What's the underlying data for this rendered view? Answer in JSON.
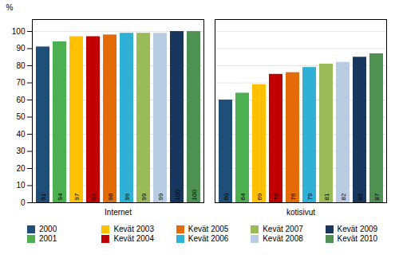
{
  "chart_data": {
    "type": "bar",
    "categories": [
      "Internet",
      "kotisivut"
    ],
    "series": [
      {
        "name": "2000",
        "color": "#1F4E79",
        "values": [
          91,
          60
        ]
      },
      {
        "name": "2001",
        "color": "#4CAF50",
        "values": [
          94,
          64
        ]
      },
      {
        "name": "Kevät 2003",
        "color": "#FFC000",
        "values": [
          97,
          69
        ]
      },
      {
        "name": "Kevät 2004",
        "color": "#C00000",
        "values": [
          97,
          75
        ]
      },
      {
        "name": "Kevät 2005",
        "color": "#E36C09",
        "values": [
          98,
          76
        ]
      },
      {
        "name": "Kevät 2006",
        "color": "#31B0D5",
        "values": [
          99,
          79
        ]
      },
      {
        "name": "Kevät 2007",
        "color": "#9BBB59",
        "values": [
          99,
          81
        ]
      },
      {
        "name": "Kevät 2008",
        "color": "#B8CCE4",
        "values": [
          99,
          82
        ]
      },
      {
        "name": "Kevät 2009",
        "color": "#17375E",
        "values": [
          100,
          85
        ]
      },
      {
        "name": "Kevät 2010",
        "color": "#4E9253",
        "values": [
          100,
          87
        ]
      }
    ],
    "ylabel": "%",
    "ylim": [
      0,
      107
    ],
    "yticks": [
      0,
      10,
      20,
      30,
      40,
      50,
      60,
      70,
      80,
      90,
      100
    ],
    "grid": true,
    "data_labels": true,
    "legend": "bottom"
  }
}
